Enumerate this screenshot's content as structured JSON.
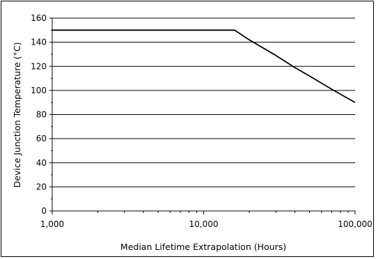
{
  "chart_data": {
    "type": "line",
    "title": "",
    "xlabel": "Median Lifetime Extrapolation (Hours)",
    "ylabel": "Device Junction Temperature (°C)",
    "x_scale": "log",
    "xlim": [
      1000,
      100000
    ],
    "ylim": [
      0,
      160
    ],
    "x_ticks": [
      1000,
      10000,
      100000
    ],
    "x_tick_labels": [
      "1,000",
      "10,000",
      "100,000"
    ],
    "y_ticks": [
      0,
      20,
      40,
      60,
      80,
      100,
      120,
      140,
      160
    ],
    "y_tick_labels": [
      "0",
      "20",
      "40",
      "60",
      "80",
      "100",
      "120",
      "140",
      "160"
    ],
    "grid": "horizontal",
    "legend": "none",
    "line_color": "#000000",
    "series": [
      {
        "x": [
          1000,
          2000,
          5000,
          10000,
          16000,
          20000,
          30000,
          40000,
          50000,
          70000,
          100000
        ],
        "y": [
          150,
          150,
          150,
          150,
          150,
          142,
          129,
          119,
          112,
          101,
          90
        ]
      }
    ]
  }
}
